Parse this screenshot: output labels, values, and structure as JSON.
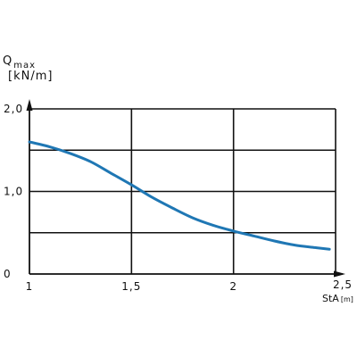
{
  "chart_data": {
    "type": "line",
    "ylabel": {
      "symbol": "Q",
      "subscript": "max",
      "unit": "[kN/m]"
    },
    "xlabel": {
      "text": "StA",
      "unit": "[m]"
    },
    "xlim": [
      1,
      2.5
    ],
    "ylim": [
      0,
      2.0
    ],
    "x_ticks": [
      {
        "value": 1,
        "label": "1"
      },
      {
        "value": 1.5,
        "label": "1,5"
      },
      {
        "value": 2,
        "label": "2"
      },
      {
        "value": 2.5,
        "label": "2,5"
      }
    ],
    "y_ticks": [
      {
        "value": 0,
        "label": "0"
      },
      {
        "value": 1.0,
        "label": "1,0"
      },
      {
        "value": 2.0,
        "label": "2,0"
      }
    ],
    "grid_y": [
      0.5,
      1.0,
      1.5,
      2.0
    ],
    "grid_x": [
      1.5,
      2.0,
      2.5
    ],
    "grid": true,
    "series": [
      {
        "color": "#1f77b4",
        "x": [
          1.0,
          1.1,
          1.2,
          1.3,
          1.4,
          1.5,
          1.6,
          1.7,
          1.8,
          1.9,
          2.0,
          2.1,
          2.2,
          2.3,
          2.4,
          2.47
        ],
        "y": [
          1.6,
          1.54,
          1.46,
          1.36,
          1.22,
          1.08,
          0.93,
          0.8,
          0.68,
          0.59,
          0.52,
          0.46,
          0.4,
          0.35,
          0.32,
          0.3
        ]
      }
    ]
  }
}
